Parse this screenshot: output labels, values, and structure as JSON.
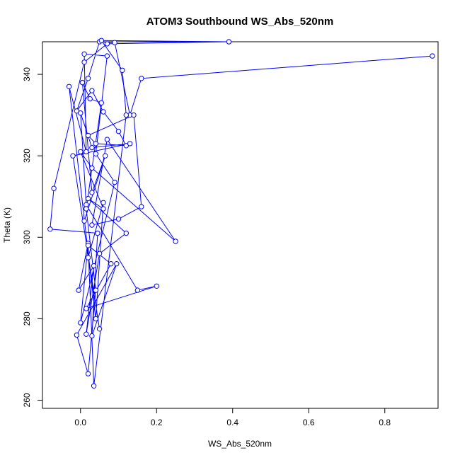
{
  "chart_data": {
    "type": "line",
    "title": "ATOM3 Southbound WS_Abs_520nm",
    "xlabel": "WS_Abs_520nm",
    "ylabel": "Theta (K)",
    "xlim": [
      -0.1,
      0.94
    ],
    "ylim": [
      258,
      348
    ],
    "xticks": [
      "0.0",
      "0.2",
      "0.4",
      "0.6",
      "0.8"
    ],
    "yticks": [
      "260",
      "280",
      "300",
      "320",
      "340"
    ],
    "grid": false,
    "legend": "none",
    "marker": "open-circle",
    "color": "#0000ff",
    "series": [
      {
        "x": [
          0.925,
          0.16,
          0.13,
          0.09,
          0.05,
          0.02,
          -0.01,
          0.03,
          0.06,
          0.1,
          0.12,
          0.04,
          0.02,
          0.14,
          0.16,
          0.1,
          0.03,
          0.07,
          0.25,
          0.03,
          0.0,
          0.06,
          0.02,
          0.12,
          0.05,
          0.015,
          0.035,
          -0.005,
          0.02,
          0.0,
          0.09,
          0.04,
          0.07,
          0.01,
          0.015,
          -0.03,
          0.04,
          0.06,
          0.02,
          0.05,
          -0.02,
          0.13,
          0.03,
          0.0,
          0.015,
          0.15,
          0.2,
          0.015,
          0.08,
          0.02,
          0.035,
          0.12,
          0.11,
          0.055,
          0.39,
          0.07,
          0.01,
          -0.07,
          -0.08,
          0.045,
          0.03,
          0.095,
          -0.01,
          0.02,
          0.04,
          0.015,
          0.055,
          0.025,
          0.005,
          0.03,
          0.065,
          0.01
        ],
        "y": [
          344.5,
          339.0,
          330.0,
          347.8,
          348.0,
          339.0,
          331.0,
          336.0,
          330.8,
          326.0,
          322.5,
          323.0,
          325.0,
          330.0,
          307.5,
          304.5,
          303.0,
          324.0,
          299.0,
          317.0,
          321.0,
          307.0,
          309.5,
          301.0,
          296.0,
          276.2,
          293.0,
          287.0,
          298.5,
          279.0,
          313.5,
          320.5,
          344.5,
          345.0,
          321.0,
          337.0,
          280.0,
          308.5,
          295.0,
          277.5,
          320.0,
          323.0,
          322.0,
          330.5,
          308.0,
          287.0,
          288.0,
          282.5,
          293.5,
          298.0,
          263.5,
          330.0,
          341.0,
          348.3,
          348.0,
          347.5,
          343.0,
          312.0,
          302.0,
          301.0,
          275.8,
          293.5,
          276.0,
          266.5,
          287.0,
          307.0,
          333.0,
          334.0,
          338.0,
          311.0,
          320.0,
          304.0
        ]
      }
    ]
  }
}
